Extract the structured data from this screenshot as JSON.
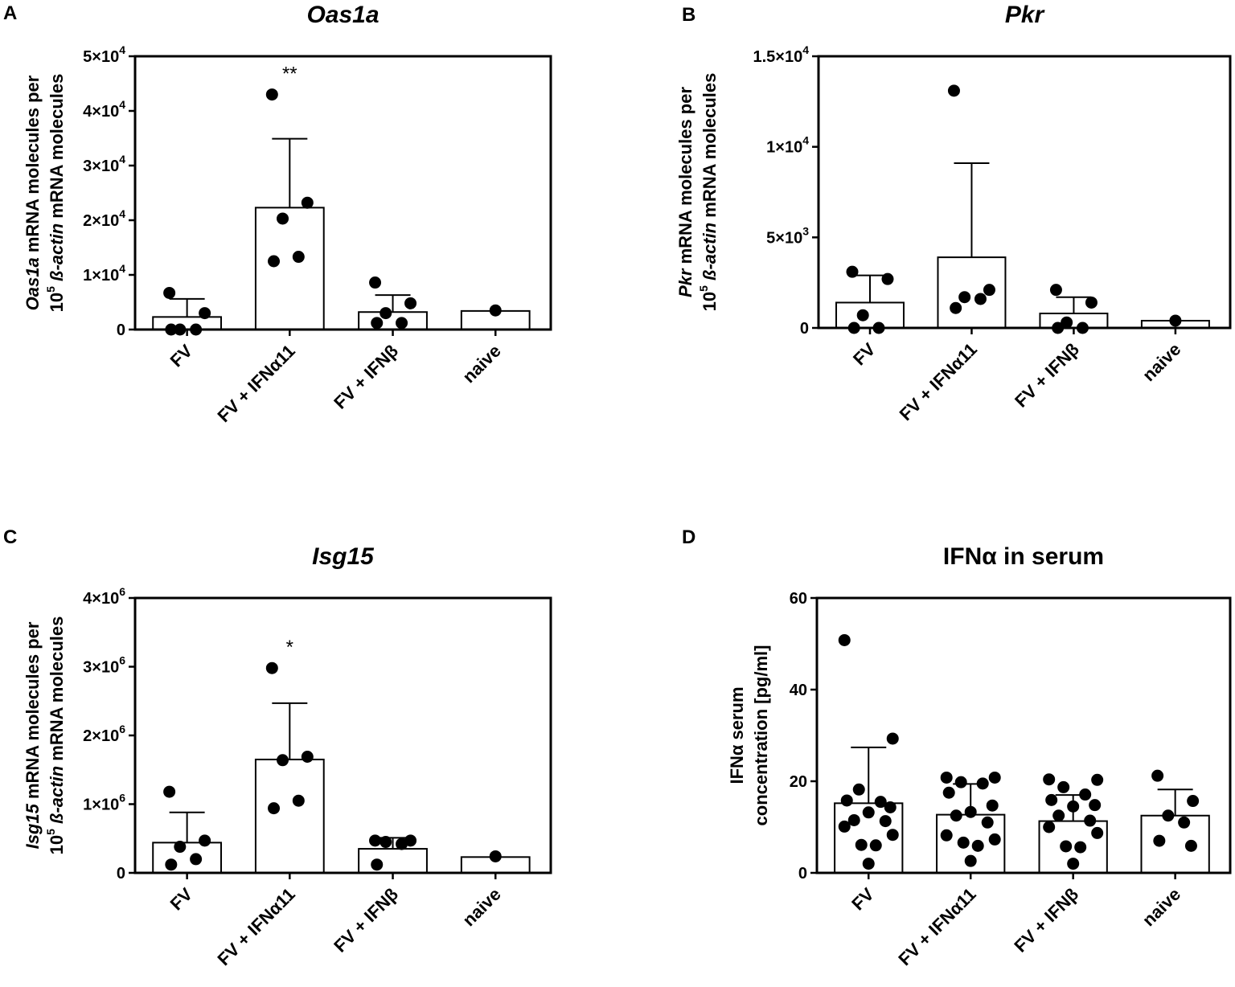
{
  "panels": [
    {
      "letter": "A",
      "title": "Oas1a",
      "ylabel1": {
        "italic": "Oas1a",
        "rest": " mRNA molecules per"
      },
      "ylabel2": {
        "base": "10",
        "sup": "5",
        "italic": " ß-actin",
        "rest": " mRNA molecules"
      },
      "yticks": [
        {
          "value": 0,
          "mant": "0",
          "exp": ""
        },
        {
          "value": 10000,
          "mant": "1×10",
          "exp": "4"
        },
        {
          "value": 20000,
          "mant": "2×10",
          "exp": "4"
        },
        {
          "value": 30000,
          "mant": "3×10",
          "exp": "4"
        },
        {
          "value": 40000,
          "mant": "4×10",
          "exp": "4"
        },
        {
          "value": 50000,
          "mant": "5×10",
          "exp": "4"
        }
      ]
    },
    {
      "letter": "B",
      "title": "Pkr",
      "ylabel1": {
        "italic": "Pkr",
        "rest": " mRNA molecules per"
      },
      "ylabel2": {
        "base": "10",
        "sup": "5",
        "italic": " ß-actin",
        "rest": " mRNA molecules"
      },
      "yticks": [
        {
          "value": 0,
          "mant": "0",
          "exp": ""
        },
        {
          "value": 5000,
          "mant": "5×10",
          "exp": "3"
        },
        {
          "value": 10000,
          "mant": "1×10",
          "exp": "4"
        },
        {
          "value": 15000,
          "mant": "1.5×10",
          "exp": "4"
        }
      ]
    },
    {
      "letter": "C",
      "title": "Isg15",
      "ylabel1": {
        "italic": "Isg15",
        "rest": " mRNA molecules per"
      },
      "ylabel2": {
        "base": "10",
        "sup": "5",
        "italic": " ß-actin",
        "rest": " mRNA molecules"
      },
      "yticks": [
        {
          "value": 0,
          "mant": "0",
          "exp": ""
        },
        {
          "value": 1000000,
          "mant": "1×10",
          "exp": "6"
        },
        {
          "value": 2000000,
          "mant": "2×10",
          "exp": "6"
        },
        {
          "value": 3000000,
          "mant": "3×10",
          "exp": "6"
        },
        {
          "value": 4000000,
          "mant": "4×10",
          "exp": "6"
        }
      ]
    },
    {
      "letter": "D",
      "title": "IFNα in serum",
      "ylabel1": {
        "italic": "",
        "rest": "IFNα serum"
      },
      "ylabel2": {
        "base": "",
        "sup": "",
        "italic": "",
        "rest": "concentration [pg/ml]"
      },
      "yticks": [
        {
          "value": 0,
          "mant": "0",
          "exp": ""
        },
        {
          "value": 20,
          "mant": "20",
          "exp": ""
        },
        {
          "value": 40,
          "mant": "40",
          "exp": ""
        },
        {
          "value": 60,
          "mant": "60",
          "exp": ""
        }
      ]
    }
  ],
  "chart_data": [
    {
      "type": "bar",
      "title": "Oas1a",
      "ylabel": "Oas1a mRNA molecules per 10^5 ß-actin mRNA molecules",
      "categories": [
        "FV",
        "FV + IFNα11",
        "FV + IFNβ",
        "naive"
      ],
      "ylim": [
        0,
        50000
      ],
      "means": [
        2300,
        22300,
        3200,
        3400
      ],
      "sd_upper": [
        5600,
        34900,
        6300,
        null
      ],
      "points": [
        [
          6700,
          3000,
          0,
          0,
          0
        ],
        [
          43000,
          23200,
          20300,
          13300,
          12500
        ],
        [
          8600,
          4800,
          3000,
          1200,
          1200
        ],
        [
          3500
        ]
      ],
      "significance": [
        "",
        "**",
        "",
        ""
      ]
    },
    {
      "type": "bar",
      "title": "Pkr",
      "ylabel": "Pkr mRNA molecules per 10^5 ß-actin mRNA molecules",
      "categories": [
        "FV",
        "FV + IFNα11",
        "FV + IFNβ",
        "naive"
      ],
      "ylim": [
        0,
        15000
      ],
      "means": [
        1400,
        3900,
        800,
        400
      ],
      "sd_upper": [
        2900,
        9100,
        1700,
        null
      ],
      "points": [
        [
          3100,
          2700,
          700,
          0,
          0
        ],
        [
          13100,
          2100,
          1700,
          1600,
          1100
        ],
        [
          2100,
          1400,
          300,
          0,
          0
        ],
        [
          400
        ]
      ],
      "significance": [
        "",
        "",
        "",
        ""
      ]
    },
    {
      "type": "bar",
      "title": "Isg15",
      "ylabel": "Isg15 mRNA molecules per 10^5 ß-actin mRNA molecules",
      "categories": [
        "FV",
        "FV + IFNα11",
        "FV + IFNβ",
        "naive"
      ],
      "ylim": [
        0,
        4000000
      ],
      "means": [
        440000,
        1650000,
        350000,
        230000
      ],
      "sd_upper": [
        880000,
        2470000,
        510000,
        null
      ],
      "points": [
        [
          1180000,
          470000,
          380000,
          200000,
          120000
        ],
        [
          2980000,
          1690000,
          1640000,
          1050000,
          940000
        ],
        [
          470000,
          470000,
          450000,
          420000,
          120000
        ],
        [
          240000
        ]
      ],
      "significance": [
        "",
        "*",
        "",
        ""
      ]
    },
    {
      "type": "bar",
      "title": "IFNα in serum",
      "ylabel": "IFNα serum concentration [pg/ml]",
      "categories": [
        "FV",
        "FV + IFNα11",
        "FV + IFNβ",
        "naive"
      ],
      "ylim": [
        0,
        60
      ],
      "means": [
        15.2,
        12.7,
        11.3,
        12.5
      ],
      "sd_upper": [
        27.4,
        19.4,
        17.0,
        18.2
      ],
      "points": [
        [
          50.8,
          29.3,
          18.2,
          15.5,
          15.8,
          14.3,
          13.2,
          11.5,
          11.3,
          10.1,
          8.3,
          6.1,
          6.0,
          2.0
        ],
        [
          20.8,
          20.8,
          19.8,
          19.5,
          17.5,
          14.7,
          13.3,
          12.5,
          11.0,
          8.2,
          7.3,
          6.6,
          5.9,
          2.6
        ],
        [
          20.4,
          20.3,
          18.7,
          17.1,
          15.9,
          14.8,
          14.5,
          12.5,
          11.4,
          10.0,
          8.7,
          5.8,
          5.6,
          2.0
        ],
        [
          21.2,
          15.7,
          12.5,
          11.0,
          7.0,
          5.9
        ]
      ],
      "significance": [
        "",
        "",
        "",
        ""
      ]
    }
  ]
}
